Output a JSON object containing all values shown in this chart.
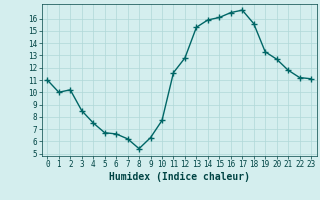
{
  "xlabel": "Humidex (Indice chaleur)",
  "x": [
    0,
    1,
    2,
    3,
    4,
    5,
    6,
    7,
    8,
    9,
    10,
    11,
    12,
    13,
    14,
    15,
    16,
    17,
    18,
    19,
    20,
    21,
    22,
    23
  ],
  "y": [
    11,
    10,
    10.2,
    8.5,
    7.5,
    6.7,
    6.6,
    6.2,
    5.4,
    6.3,
    7.7,
    11.6,
    12.8,
    15.3,
    15.9,
    16.1,
    16.5,
    16.7,
    15.6,
    13.3,
    12.7,
    11.8,
    11.2,
    11.1
  ],
  "line_color": "#006666",
  "marker": "+",
  "markersize": 4,
  "markeredgewidth": 1.0,
  "linewidth": 1.0,
  "bg_color": "#d4eeee",
  "grid_color": "#b0d8d8",
  "xlim": [
    -0.5,
    23.5
  ],
  "ylim": [
    4.8,
    17.2
  ],
  "yticks": [
    5,
    6,
    7,
    8,
    9,
    10,
    11,
    12,
    13,
    14,
    15,
    16
  ],
  "xticks": [
    0,
    1,
    2,
    3,
    4,
    5,
    6,
    7,
    8,
    9,
    10,
    11,
    12,
    13,
    14,
    15,
    16,
    17,
    18,
    19,
    20,
    21,
    22,
    23
  ],
  "tick_fontsize": 5.5,
  "xlabel_fontsize": 7,
  "label_color": "#004444"
}
